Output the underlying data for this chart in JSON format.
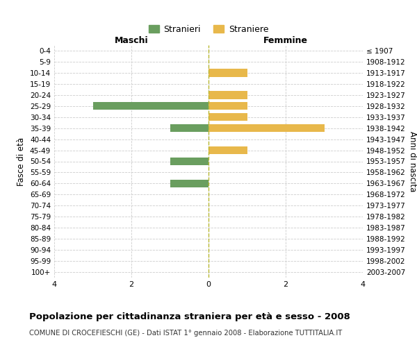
{
  "age_groups": [
    "0-4",
    "5-9",
    "10-14",
    "15-19",
    "20-24",
    "25-29",
    "30-34",
    "35-39",
    "40-44",
    "45-49",
    "50-54",
    "55-59",
    "60-64",
    "65-69",
    "70-74",
    "75-79",
    "80-84",
    "85-89",
    "90-94",
    "95-99",
    "100+"
  ],
  "birth_years": [
    "2003-2007",
    "1998-2002",
    "1993-1997",
    "1988-1992",
    "1983-1987",
    "1978-1982",
    "1973-1977",
    "1968-1972",
    "1963-1967",
    "1958-1962",
    "1953-1957",
    "1948-1952",
    "1943-1947",
    "1938-1942",
    "1933-1937",
    "1928-1932",
    "1923-1927",
    "1918-1922",
    "1913-1917",
    "1908-1912",
    "≤ 1907"
  ],
  "males": [
    0,
    0,
    0,
    0,
    0,
    3,
    0,
    1,
    0,
    0,
    1,
    0,
    1,
    0,
    0,
    0,
    0,
    0,
    0,
    0,
    0
  ],
  "females": [
    0,
    0,
    1,
    0,
    1,
    1,
    1,
    3,
    0,
    1,
    0,
    0,
    0,
    0,
    0,
    0,
    0,
    0,
    0,
    0,
    0
  ],
  "male_color": "#6a9e5f",
  "female_color": "#e8b84b",
  "title": "Popolazione per cittadinanza straniera per età e sesso - 2008",
  "subtitle": "COMUNE DI CROCEFIESCHI (GE) - Dati ISTAT 1° gennaio 2008 - Elaborazione TUTTITALIA.IT",
  "legend_male": "Stranieri",
  "legend_female": "Straniere",
  "xlabel_left": "Maschi",
  "xlabel_right": "Femmine",
  "ylabel_left": "Fasce di età",
  "ylabel_right": "Anni di nascita",
  "xlim": 4,
  "background_color": "#ffffff",
  "grid_color": "#cccccc"
}
